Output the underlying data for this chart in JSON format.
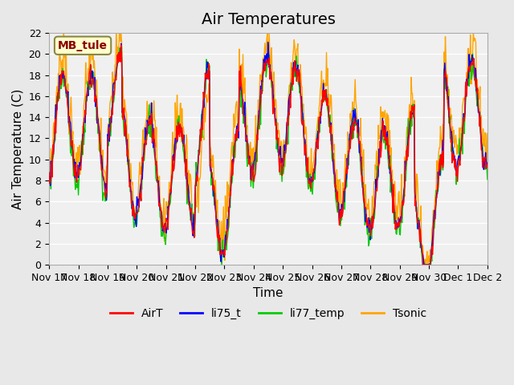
{
  "title": "Air Temperatures",
  "ylabel": "Air Temperature (C)",
  "xlabel": "Time",
  "annotation": "MB_tule",
  "annotation_color": "#8B0000",
  "annotation_bg": "#FFFFCC",
  "ylim": [
    0,
    22
  ],
  "yticks": [
    0,
    2,
    4,
    6,
    8,
    10,
    12,
    14,
    16,
    18,
    20,
    22
  ],
  "xtick_labels": [
    "Nov 17",
    "Nov 18",
    "Nov 19",
    "Nov 20",
    "Nov 21",
    "Nov 22",
    "Nov 23",
    "Nov 24",
    "Nov 25",
    "Nov 26",
    "Nov 27",
    "Nov 28",
    "Nov 29",
    "Nov 30",
    "Dec 1",
    "Dec 2"
  ],
  "series_colors": {
    "AirT": "#FF0000",
    "li75_t": "#0000FF",
    "li77_temp": "#00CC00",
    "Tsonic": "#FFA500"
  },
  "bg_color": "#E8E8E8",
  "plot_bg_color": "#F0F0F0",
  "grid_color": "#FFFFFF",
  "title_fontsize": 14,
  "label_fontsize": 11,
  "tick_fontsize": 9
}
